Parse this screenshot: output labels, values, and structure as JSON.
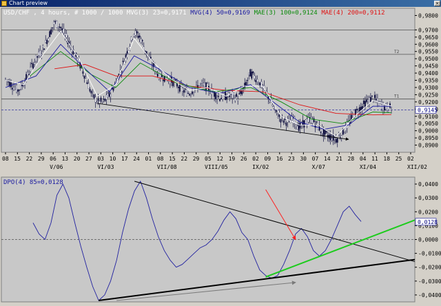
{
  "window": {
    "title": "Chart preview",
    "close_glyph": "×"
  },
  "chart_data": [
    {
      "type": "candlestick",
      "title": "USD/CHF , 4 hours, # 1000 / 1000",
      "indicators": [
        {
          "label": "MVG(3) 23=0,9171",
          "color": "#ffffff"
        },
        {
          "label": "MVG(4) 50=0,9169",
          "color": "#1a1aa0"
        },
        {
          "label": "MAE(3) 100=0,9124",
          "color": "#0b8a0b"
        },
        {
          "label": "MAE(4) 200=0,9112",
          "color": "#e01010"
        }
      ],
      "ylim": [
        0.885,
        0.985
      ],
      "yticks": [
        "0,9800",
        "0,9700",
        "0,9650",
        "0,9600",
        "0,9550",
        "0,9500",
        "0,9450",
        "0,9400",
        "0,9350",
        "0,9300",
        "0,9250",
        "0,9200",
        "0,9150",
        "0,9100",
        "0,9050",
        "0,9000",
        "0,8950",
        "0,8900"
      ],
      "current_value": "0,9145",
      "hlines": [
        {
          "value": 0.97,
          "label": ""
        },
        {
          "value": 0.953,
          "label": "T2"
        },
        {
          "value": 0.922,
          "label": "T1"
        }
      ],
      "xticks": [
        "08",
        "15",
        "22",
        "29",
        "06",
        "13",
        "20",
        "27",
        "03",
        "10",
        "17",
        "24",
        "01",
        "08",
        "15",
        "22",
        "29",
        "05",
        "12",
        "19",
        "26",
        "02",
        "09",
        "16",
        "23",
        "30",
        "07",
        "14",
        "21",
        "28",
        "04",
        "11",
        "18",
        "25",
        "02"
      ],
      "month_labels": [
        {
          "label": "V/06",
          "tick": 4
        },
        {
          "label": "VI/03",
          "tick": 8
        },
        {
          "label": "VII/08",
          "tick": 13
        },
        {
          "label": "VIII/05",
          "tick": 17
        },
        {
          "label": "IX/02",
          "tick": 21
        },
        {
          "label": "X/07",
          "tick": 26
        },
        {
          "label": "XI/04",
          "tick": 30
        },
        {
          "label": "XII/02",
          "tick": 34
        }
      ],
      "close_path": [
        [
          0,
          0.936
        ],
        [
          1,
          0.932
        ],
        [
          2,
          0.928
        ],
        [
          3,
          0.933
        ],
        [
          4,
          0.942
        ],
        [
          5,
          0.95
        ],
        [
          6,
          0.956
        ],
        [
          7,
          0.965
        ],
        [
          8,
          0.975
        ],
        [
          9,
          0.972
        ],
        [
          10,
          0.964
        ],
        [
          11,
          0.956
        ],
        [
          12,
          0.947
        ],
        [
          13,
          0.938
        ],
        [
          14,
          0.926
        ],
        [
          15,
          0.92
        ],
        [
          16,
          0.92
        ],
        [
          17,
          0.925
        ],
        [
          18,
          0.933
        ],
        [
          19,
          0.944
        ],
        [
          20,
          0.956
        ],
        [
          21,
          0.968
        ],
        [
          22,
          0.965
        ],
        [
          23,
          0.954
        ],
        [
          24,
          0.946
        ],
        [
          25,
          0.939
        ],
        [
          26,
          0.937
        ],
        [
          27,
          0.935
        ],
        [
          28,
          0.932
        ],
        [
          29,
          0.928
        ],
        [
          30,
          0.926
        ],
        [
          31,
          0.93
        ],
        [
          32,
          0.932
        ],
        [
          33,
          0.93
        ],
        [
          34,
          0.926
        ],
        [
          35,
          0.923
        ],
        [
          36,
          0.924
        ],
        [
          37,
          0.924
        ],
        [
          38,
          0.923
        ],
        [
          39,
          0.93
        ],
        [
          40,
          0.94
        ],
        [
          41,
          0.936
        ],
        [
          42,
          0.93
        ],
        [
          43,
          0.923
        ],
        [
          44,
          0.914
        ],
        [
          45,
          0.908
        ],
        [
          46,
          0.906
        ],
        [
          47,
          0.908
        ],
        [
          48,
          0.902
        ],
        [
          49,
          0.906
        ],
        [
          50,
          0.908
        ],
        [
          51,
          0.903
        ],
        [
          52,
          0.898
        ],
        [
          53,
          0.896
        ],
        [
          54,
          0.894
        ],
        [
          55,
          0.898
        ],
        [
          56,
          0.905
        ],
        [
          57,
          0.912
        ],
        [
          58,
          0.916
        ],
        [
          59,
          0.92
        ],
        [
          60,
          0.923
        ],
        [
          61,
          0.919
        ],
        [
          62,
          0.916
        ],
        [
          63,
          0.916
        ]
      ],
      "averages": {
        "mvg3": [
          [
            0,
            0.935
          ],
          [
            3,
            0.932
          ],
          [
            6,
            0.952
          ],
          [
            9,
            0.969
          ],
          [
            12,
            0.95
          ],
          [
            15,
            0.924
          ],
          [
            18,
            0.932
          ],
          [
            21,
            0.964
          ],
          [
            24,
            0.948
          ],
          [
            27,
            0.936
          ],
          [
            30,
            0.928
          ],
          [
            33,
            0.93
          ],
          [
            36,
            0.924
          ],
          [
            39,
            0.931
          ],
          [
            42,
            0.931
          ],
          [
            45,
            0.91
          ],
          [
            48,
            0.904
          ],
          [
            51,
            0.904
          ],
          [
            54,
            0.896
          ],
          [
            57,
            0.91
          ],
          [
            60,
            0.921
          ],
          [
            63,
            0.917
          ]
        ],
        "mvg4": [
          [
            0,
            0.93
          ],
          [
            5,
            0.938
          ],
          [
            9,
            0.96
          ],
          [
            13,
            0.943
          ],
          [
            17,
            0.927
          ],
          [
            21,
            0.952
          ],
          [
            25,
            0.943
          ],
          [
            30,
            0.93
          ],
          [
            35,
            0.926
          ],
          [
            40,
            0.932
          ],
          [
            44,
            0.919
          ],
          [
            48,
            0.906
          ],
          [
            52,
            0.901
          ],
          [
            56,
            0.904
          ],
          [
            60,
            0.917
          ],
          [
            63,
            0.9169
          ]
        ],
        "mae3": [
          [
            4,
            0.938
          ],
          [
            9,
            0.955
          ],
          [
            14,
            0.939
          ],
          [
            18,
            0.93
          ],
          [
            22,
            0.947
          ],
          [
            28,
            0.933
          ],
          [
            34,
            0.927
          ],
          [
            40,
            0.93
          ],
          [
            45,
            0.92
          ],
          [
            50,
            0.908
          ],
          [
            55,
            0.905
          ],
          [
            60,
            0.913
          ],
          [
            63,
            0.9124
          ]
        ],
        "mae4": [
          [
            8,
            0.943
          ],
          [
            13,
            0.946
          ],
          [
            18,
            0.938
          ],
          [
            24,
            0.938
          ],
          [
            30,
            0.931
          ],
          [
            36,
            0.928
          ],
          [
            42,
            0.927
          ],
          [
            48,
            0.918
          ],
          [
            54,
            0.912
          ],
          [
            60,
            0.911
          ],
          [
            63,
            0.9112
          ]
        ]
      },
      "trendline": [
        [
          15,
          0.919
        ],
        [
          56,
          0.894
        ]
      ]
    },
    {
      "type": "line",
      "title": "DPO(4) 85=0,0128",
      "ylim": [
        -0.045,
        0.045
      ],
      "yticks": [
        "0,0400",
        "0,0300",
        "0,0200",
        "0,0100",
        "0,0000",
        "-0,0100",
        "-0,0200",
        "-0,0300",
        "-0,0400"
      ],
      "current_value": "0,0128",
      "zero_line": 0.0,
      "series": [
        [
          0,
          0.012
        ],
        [
          1,
          0.004
        ],
        [
          2,
          0.0
        ],
        [
          3,
          0.012
        ],
        [
          4,
          0.032
        ],
        [
          5,
          0.04
        ],
        [
          6,
          0.03
        ],
        [
          7,
          0.012
        ],
        [
          8,
          -0.005
        ],
        [
          9,
          -0.02
        ],
        [
          10,
          -0.034
        ],
        [
          11,
          -0.044
        ],
        [
          12,
          -0.04
        ],
        [
          13,
          -0.03
        ],
        [
          14,
          -0.015
        ],
        [
          15,
          0.005
        ],
        [
          16,
          0.022
        ],
        [
          17,
          0.035
        ],
        [
          18,
          0.042
        ],
        [
          19,
          0.03
        ],
        [
          20,
          0.015
        ],
        [
          21,
          0.002
        ],
        [
          22,
          -0.008
        ],
        [
          23,
          -0.015
        ],
        [
          24,
          -0.02
        ],
        [
          25,
          -0.018
        ],
        [
          26,
          -0.014
        ],
        [
          27,
          -0.01
        ],
        [
          28,
          -0.006
        ],
        [
          29,
          -0.004
        ],
        [
          30,
          0.0
        ],
        [
          31,
          0.006
        ],
        [
          32,
          0.014
        ],
        [
          33,
          0.02
        ],
        [
          34,
          0.015
        ],
        [
          35,
          0.005
        ],
        [
          36,
          0.0
        ],
        [
          37,
          -0.012
        ],
        [
          38,
          -0.022
        ],
        [
          39,
          -0.026
        ],
        [
          40,
          -0.028
        ],
        [
          41,
          -0.026
        ],
        [
          42,
          -0.018
        ],
        [
          43,
          -0.008
        ],
        [
          44,
          0.004
        ],
        [
          45,
          0.008
        ],
        [
          46,
          0.002
        ],
        [
          47,
          -0.008
        ],
        [
          48,
          -0.012
        ],
        [
          49,
          -0.008
        ],
        [
          50,
          0.0
        ],
        [
          51,
          0.01
        ],
        [
          52,
          0.02
        ],
        [
          53,
          0.024
        ],
        [
          54,
          0.018
        ],
        [
          55,
          0.013
        ]
      ],
      "lines": [
        {
          "color": "#000000",
          "width": 1,
          "from": [
            17,
            0.042
          ],
          "to": [
            64,
            -0.016
          ]
        },
        {
          "color": "#000000",
          "width": 2,
          "from": [
            11,
            -0.044
          ],
          "to": [
            64,
            -0.0145
          ]
        },
        {
          "color": "#1ccc1c",
          "width": 2,
          "from": [
            39,
            -0.027
          ],
          "to": [
            64,
            0.014
          ]
        },
        {
          "color": "#7a7a7a",
          "width": 1,
          "from": [
            14,
            -0.044
          ],
          "to": [
            44,
            -0.031
          ],
          "arrow": true
        },
        {
          "color": "#ff2020",
          "width": 1,
          "from": [
            39,
            0.036
          ],
          "to": [
            44,
            0.0
          ],
          "arrow": true
        }
      ]
    }
  ]
}
